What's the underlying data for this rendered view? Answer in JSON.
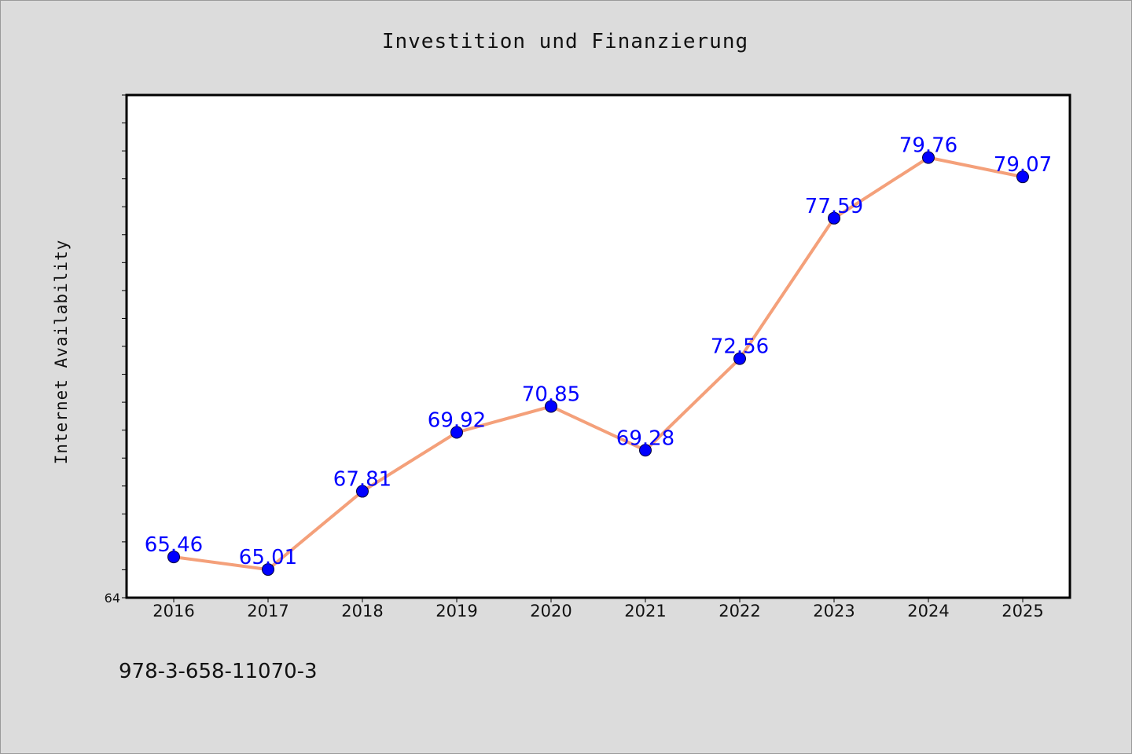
{
  "chart_data": {
    "type": "line",
    "title": "Investition und Finanzierung",
    "xlabel": "",
    "ylabel": "Internet Availability",
    "categories": [
      "2016",
      "2017",
      "2018",
      "2019",
      "2020",
      "2021",
      "2022",
      "2023",
      "2024",
      "2025"
    ],
    "series": [
      {
        "values": [
          65.46,
          65.01,
          67.81,
          69.92,
          70.85,
          69.28,
          72.56,
          77.59,
          79.76,
          79.07
        ],
        "data_labels": [
          "65.46",
          "65.01",
          "67.81",
          "69.92",
          "70.85",
          "69.28",
          "72.56",
          "77.59",
          "79.76",
          "79.07"
        ],
        "line_color": "#f4a07a",
        "marker_color": "#0000ff"
      }
    ],
    "ylim": [
      64,
      82
    ],
    "y_tick_step": 1,
    "y_tick_labels": [
      "64"
    ],
    "grid": false,
    "legend": "none"
  },
  "footer": {
    "text": "978-3-658-11070-3"
  },
  "colors": {
    "background": "#dcdcdc",
    "plot_background": "#ffffff",
    "line": "#f4a07a",
    "marker": "#0000ff",
    "data_label": "#0000ff"
  }
}
